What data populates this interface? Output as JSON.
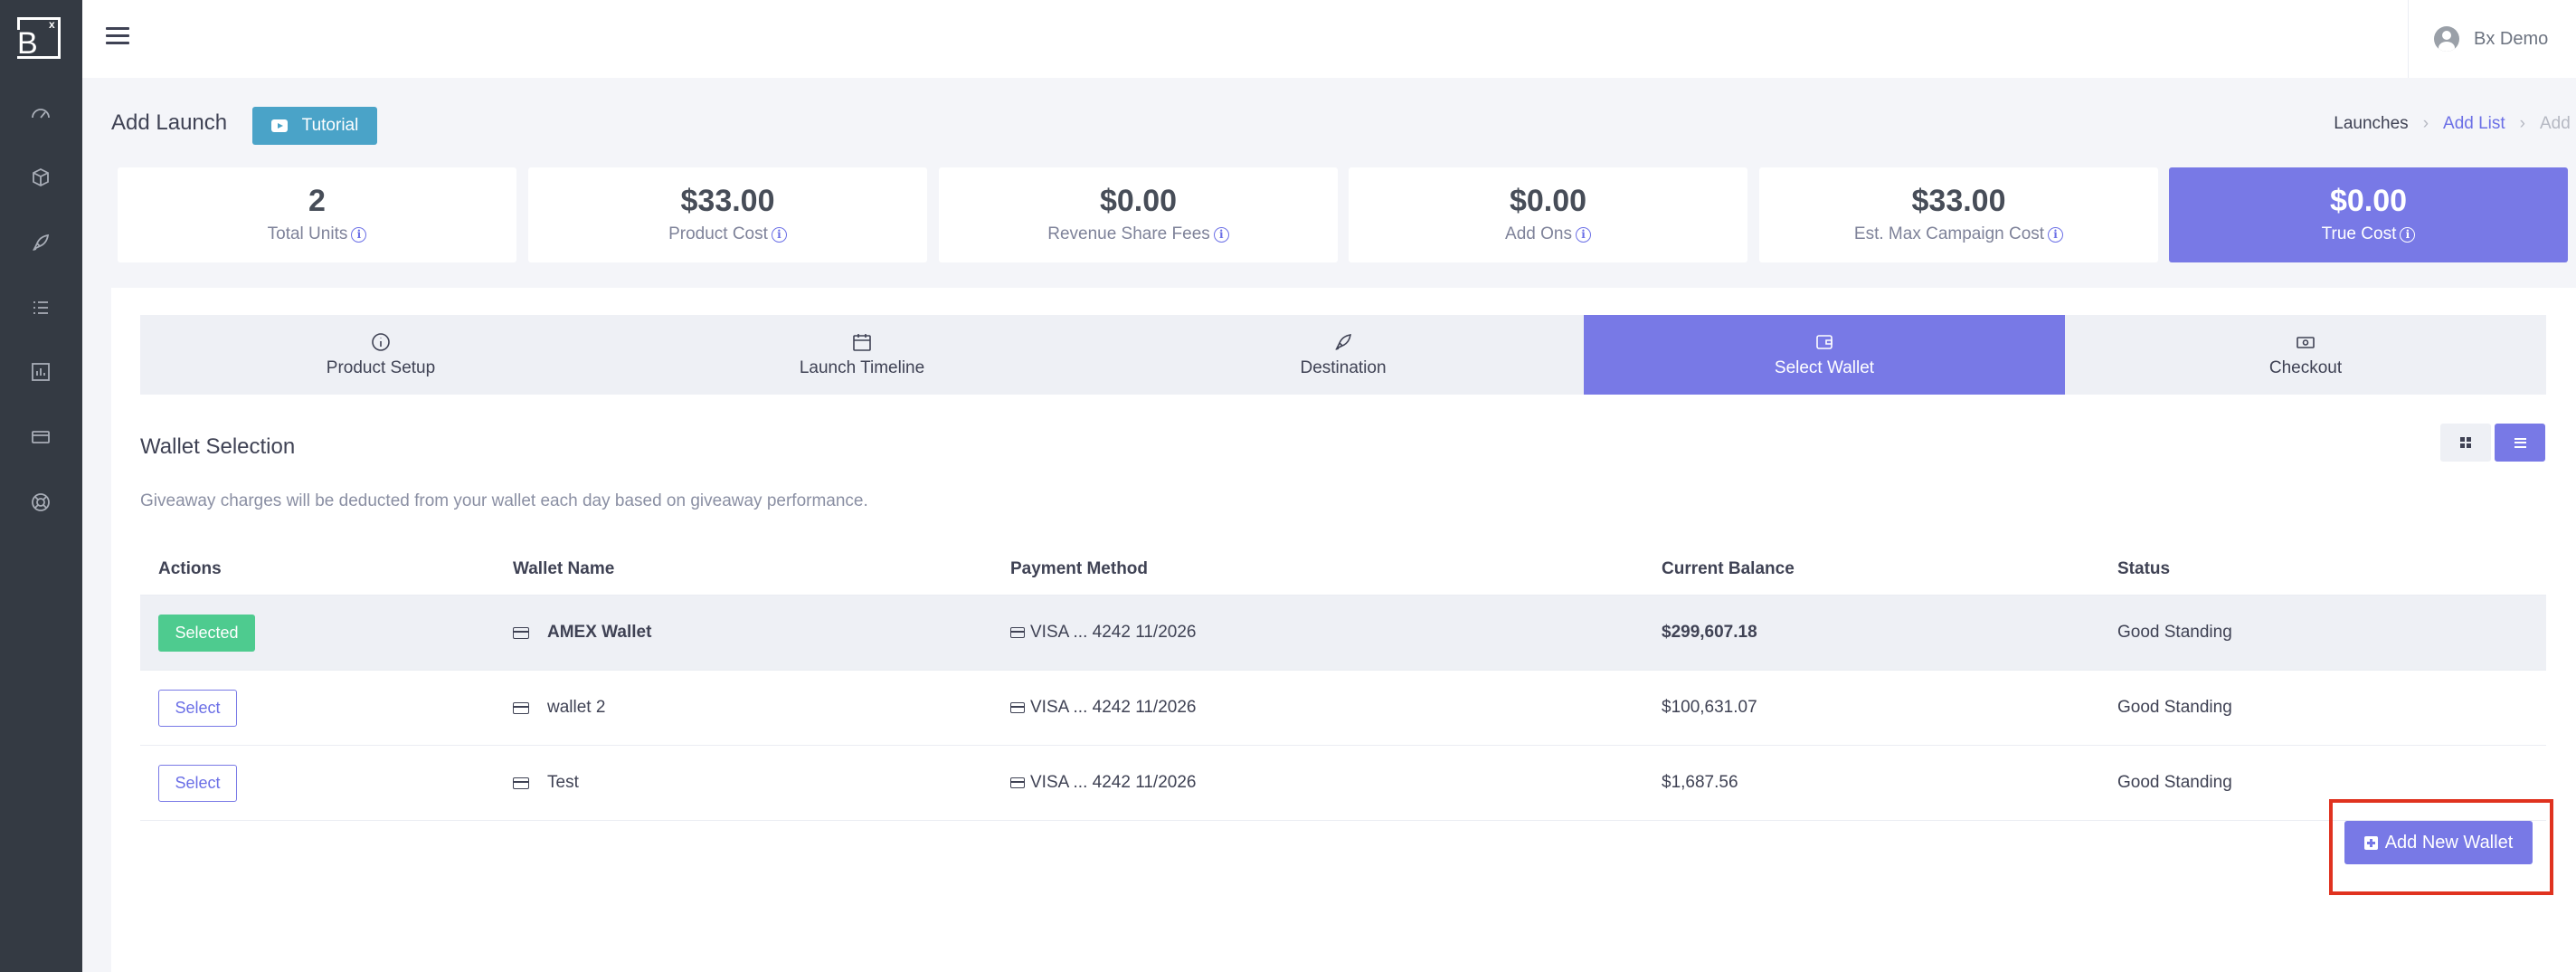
{
  "sidebar": {
    "logo_letter": "B",
    "logo_mark": "x",
    "nav_icons": [
      "dashboard-icon",
      "box-icon",
      "rocket-icon",
      "list-icon",
      "chart-icon",
      "credit-card-icon",
      "support-icon"
    ]
  },
  "topbar": {
    "user_name": "Bx Demo"
  },
  "header": {
    "title": "Add Launch",
    "tutorial_label": "Tutorial",
    "breadcrumb": [
      "Launches",
      "Add List",
      "Add"
    ]
  },
  "stats": [
    {
      "value": "2",
      "label": "Total Units"
    },
    {
      "value": "$33.00",
      "label": "Product Cost"
    },
    {
      "value": "$0.00",
      "label": "Revenue Share Fees"
    },
    {
      "value": "$0.00",
      "label": "Add Ons"
    },
    {
      "value": "$33.00",
      "label": "Est. Max Campaign Cost"
    },
    {
      "value": "$0.00",
      "label": "True Cost"
    }
  ],
  "steps": [
    {
      "label": "Product Setup",
      "icon": "info-icon"
    },
    {
      "label": "Launch Timeline",
      "icon": "calendar-icon"
    },
    {
      "label": "Destination",
      "icon": "rocket-icon"
    },
    {
      "label": "Select Wallet",
      "icon": "wallet-icon",
      "active": true
    },
    {
      "label": "Checkout",
      "icon": "money-icon"
    }
  ],
  "wallet_section": {
    "title": "Wallet Selection",
    "description": "Giveaway charges will be deducted from your wallet each day based on giveaway performance."
  },
  "table": {
    "headers": [
      "Actions",
      "Wallet Name",
      "Payment Method",
      "Current Balance",
      "Status"
    ],
    "rows": [
      {
        "action": "Selected",
        "name": "AMEX Wallet",
        "payment": "VISA ... 4242 11/2026",
        "balance": "$299,607.18",
        "status": "Good Standing"
      },
      {
        "action": "Select",
        "name": "wallet 2",
        "payment": "VISA ... 4242 11/2026",
        "balance": "$100,631.07",
        "status": "Good Standing"
      },
      {
        "action": "Select",
        "name": "Test",
        "payment": "VISA ... 4242 11/2026",
        "balance": "$1,687.56",
        "status": "Good Standing"
      }
    ]
  },
  "add_wallet_label": "Add New Wallet",
  "colors": {
    "sidebar": "#343a43",
    "accent": "#7879e6",
    "success": "#4ecb8f",
    "tutorial": "#4aa3c8",
    "highlight": "#e0321f"
  }
}
